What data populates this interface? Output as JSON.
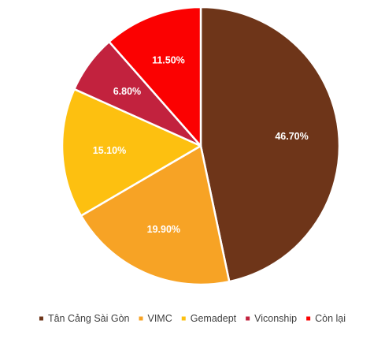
{
  "chart_data": {
    "type": "pie",
    "title": "",
    "categories": [
      "Tân Cảng Sài Gòn",
      "VIMC",
      "Gemadept",
      "Viconship",
      "Còn lại"
    ],
    "values": [
      46.7,
      19.9,
      15.1,
      6.8,
      11.5
    ],
    "data_labels": [
      "46.70%",
      "19.90%",
      "15.10%",
      "6.80%",
      "11.50%"
    ],
    "colors": [
      "#6E3519",
      "#F7A325",
      "#FDC010",
      "#C2223E",
      "#FB0101"
    ],
    "start": "12 o'clock",
    "direction": "clockwise",
    "legend_position": "bottom"
  }
}
